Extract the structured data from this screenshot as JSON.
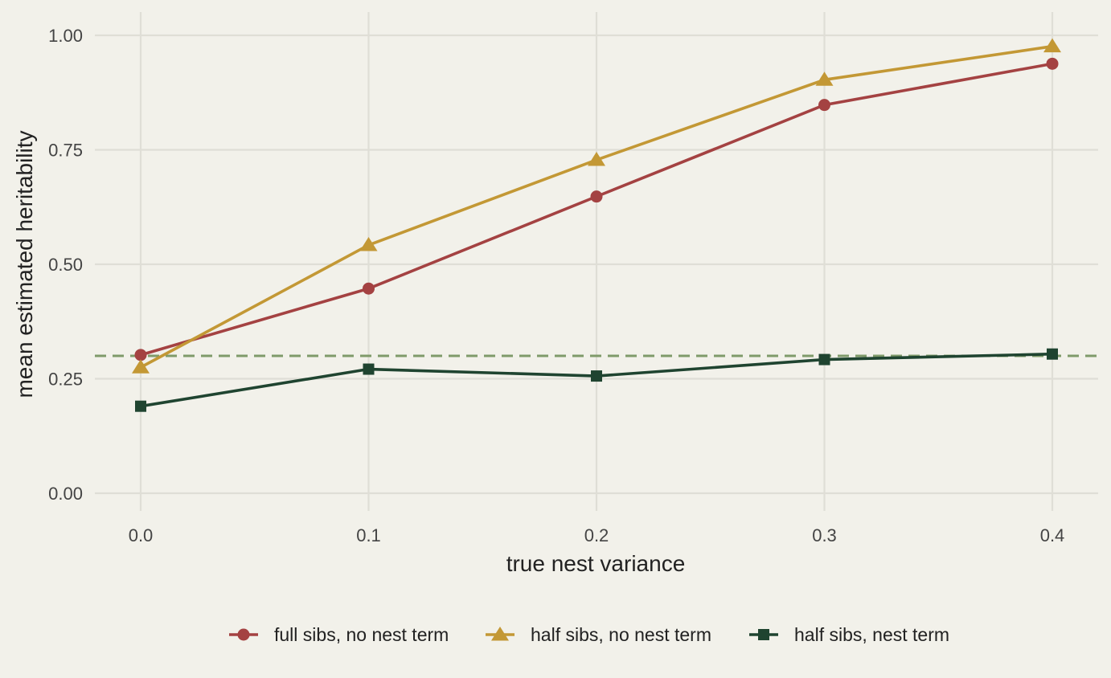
{
  "chart_data": {
    "type": "line",
    "xlabel": "true nest variance",
    "ylabel": "mean estimated heritability",
    "x": [
      0.0,
      0.1,
      0.2,
      0.3,
      0.4
    ],
    "x_tick_labels": [
      "0.0",
      "0.1",
      "0.2",
      "0.3",
      "0.4"
    ],
    "xlim": [
      -0.02,
      0.42
    ],
    "ylim": [
      -0.02,
      1.05
    ],
    "y_ticks": [
      0.0,
      0.25,
      0.5,
      0.75,
      1.0
    ],
    "y_tick_labels": [
      "0.00",
      "0.25",
      "0.50",
      "0.75",
      "1.00"
    ],
    "grid": true,
    "legend_position": "bottom",
    "reference_line": {
      "y": 0.3,
      "style": "dashed",
      "color": "#7f9a6a"
    },
    "series": [
      {
        "name": "full sibs, no nest term",
        "color": "#a44242",
        "marker": "circle",
        "values": [
          0.302,
          0.447,
          0.648,
          0.848,
          0.938
        ]
      },
      {
        "name": "half sibs, no nest term",
        "color": "#c39835",
        "marker": "triangle",
        "values": [
          0.275,
          0.542,
          0.728,
          0.903,
          0.976
        ]
      },
      {
        "name": "half sibs, nest term",
        "color": "#1f4430",
        "marker": "square",
        "values": [
          0.19,
          0.271,
          0.256,
          0.292,
          0.304
        ]
      }
    ]
  },
  "colors": {
    "background": "#f2f1ea",
    "grid": "#dfded6"
  }
}
